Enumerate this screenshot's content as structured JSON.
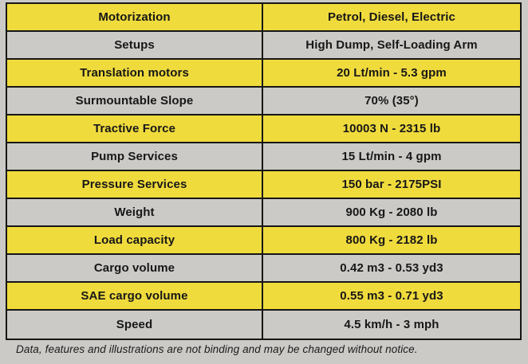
{
  "page": {
    "background_color": "#cbcac7",
    "footer_note": "Data, features and illustrations are not binding and may be changed without notice."
  },
  "table": {
    "colors": {
      "row_yellow": "#f0db3d",
      "row_gray": "#cbcac7",
      "border": "#161616",
      "text": "#171717"
    },
    "rows": [
      {
        "label": "Motorization",
        "value": "Petrol, Diesel, Electric"
      },
      {
        "label": "Setups",
        "value": "High Dump, Self-Loading Arm"
      },
      {
        "label": "Translation motors",
        "value": "20 Lt/min - 5.3 gpm"
      },
      {
        "label": "Surmountable Slope",
        "value": "70% (35°)"
      },
      {
        "label": "Tractive Force",
        "value": "10003 N - 2315 lb"
      },
      {
        "label": "Pump Services",
        "value": "15 Lt/min - 4 gpm"
      },
      {
        "label": "Pressure Services",
        "value": "150 bar - 2175PSI"
      },
      {
        "label": "Weight",
        "value": "900 Kg - 2080 lb"
      },
      {
        "label": "Load capacity",
        "value": "800 Kg - 2182 lb"
      },
      {
        "label": "Cargo volume",
        "value": "0.42 m3 - 0.53 yd3"
      },
      {
        "label": "SAE cargo volume",
        "value": "0.55 m3 - 0.71 yd3"
      },
      {
        "label": "Speed",
        "value": "4.5 km/h - 3 mph"
      }
    ]
  }
}
